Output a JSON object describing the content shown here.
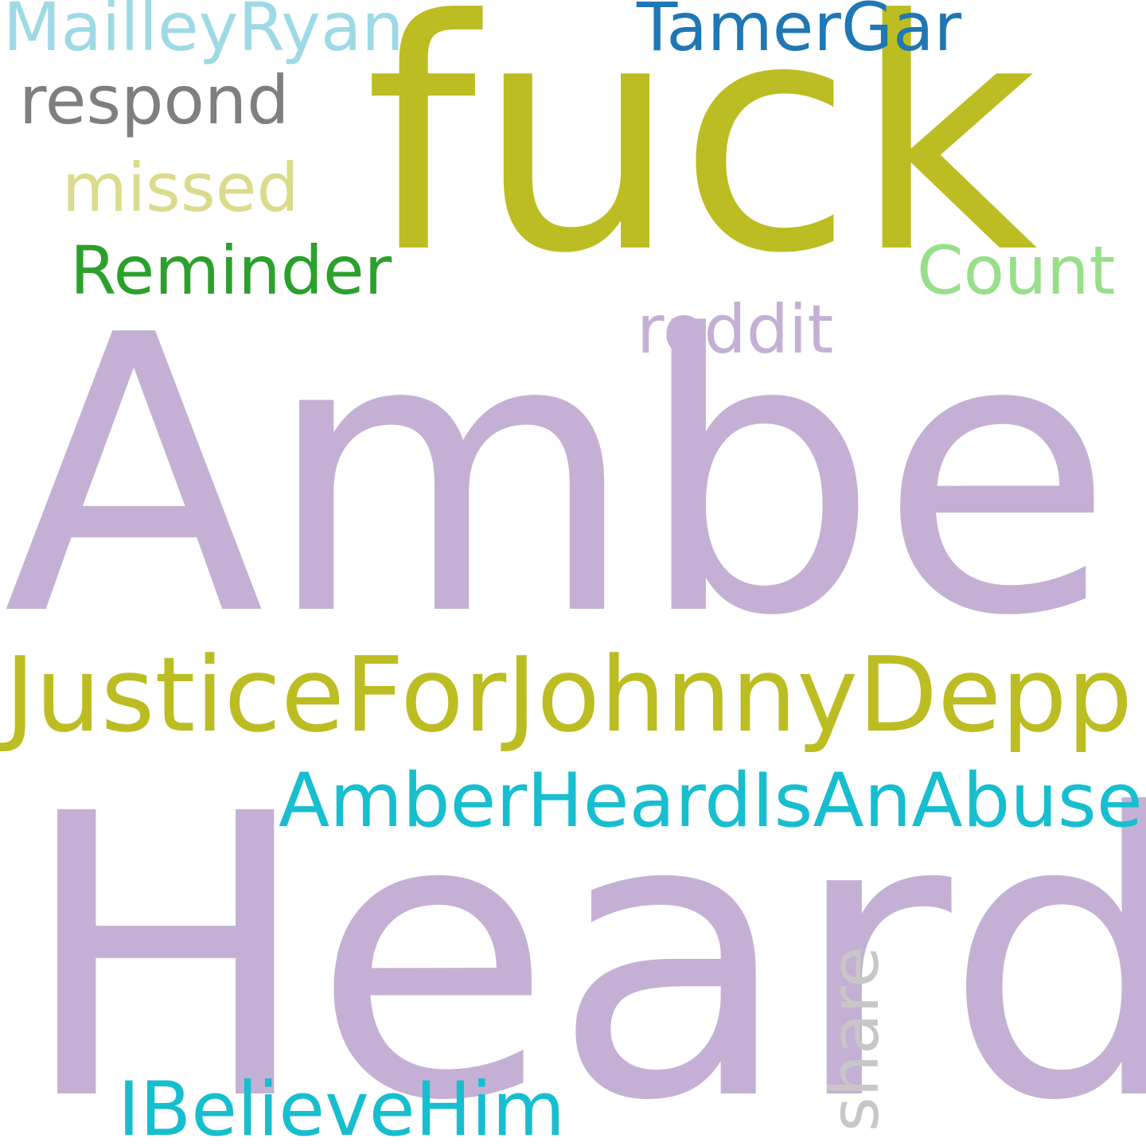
{
  "words": [
    {
      "text": "Amber",
      "color": "#c5b0d5"
    },
    {
      "text": "Heard",
      "color": "#c5b0d5"
    },
    {
      "text": "fuck",
      "color": "#bcbd22"
    },
    {
      "text": "JusticeForJohnnyDepp",
      "color": "#bcbd22"
    },
    {
      "text": "AmberHeardIsAnAbuser",
      "color": "#17becf"
    },
    {
      "text": "IBelieveHim",
      "color": "#17becf"
    },
    {
      "text": "MailleyRyan",
      "color": "#9edae5"
    },
    {
      "text": "TamerGar",
      "color": "#1f77b4"
    },
    {
      "text": "respond",
      "color": "#7f7f7f"
    },
    {
      "text": "missed",
      "color": "#dbdb8d"
    },
    {
      "text": "Reminder",
      "color": "#2ca02c"
    },
    {
      "text": "Count",
      "color": "#98df8a"
    },
    {
      "text": "reddit",
      "color": "#c5b0d5"
    },
    {
      "text": "share",
      "color": "#c7c7c7"
    }
  ]
}
